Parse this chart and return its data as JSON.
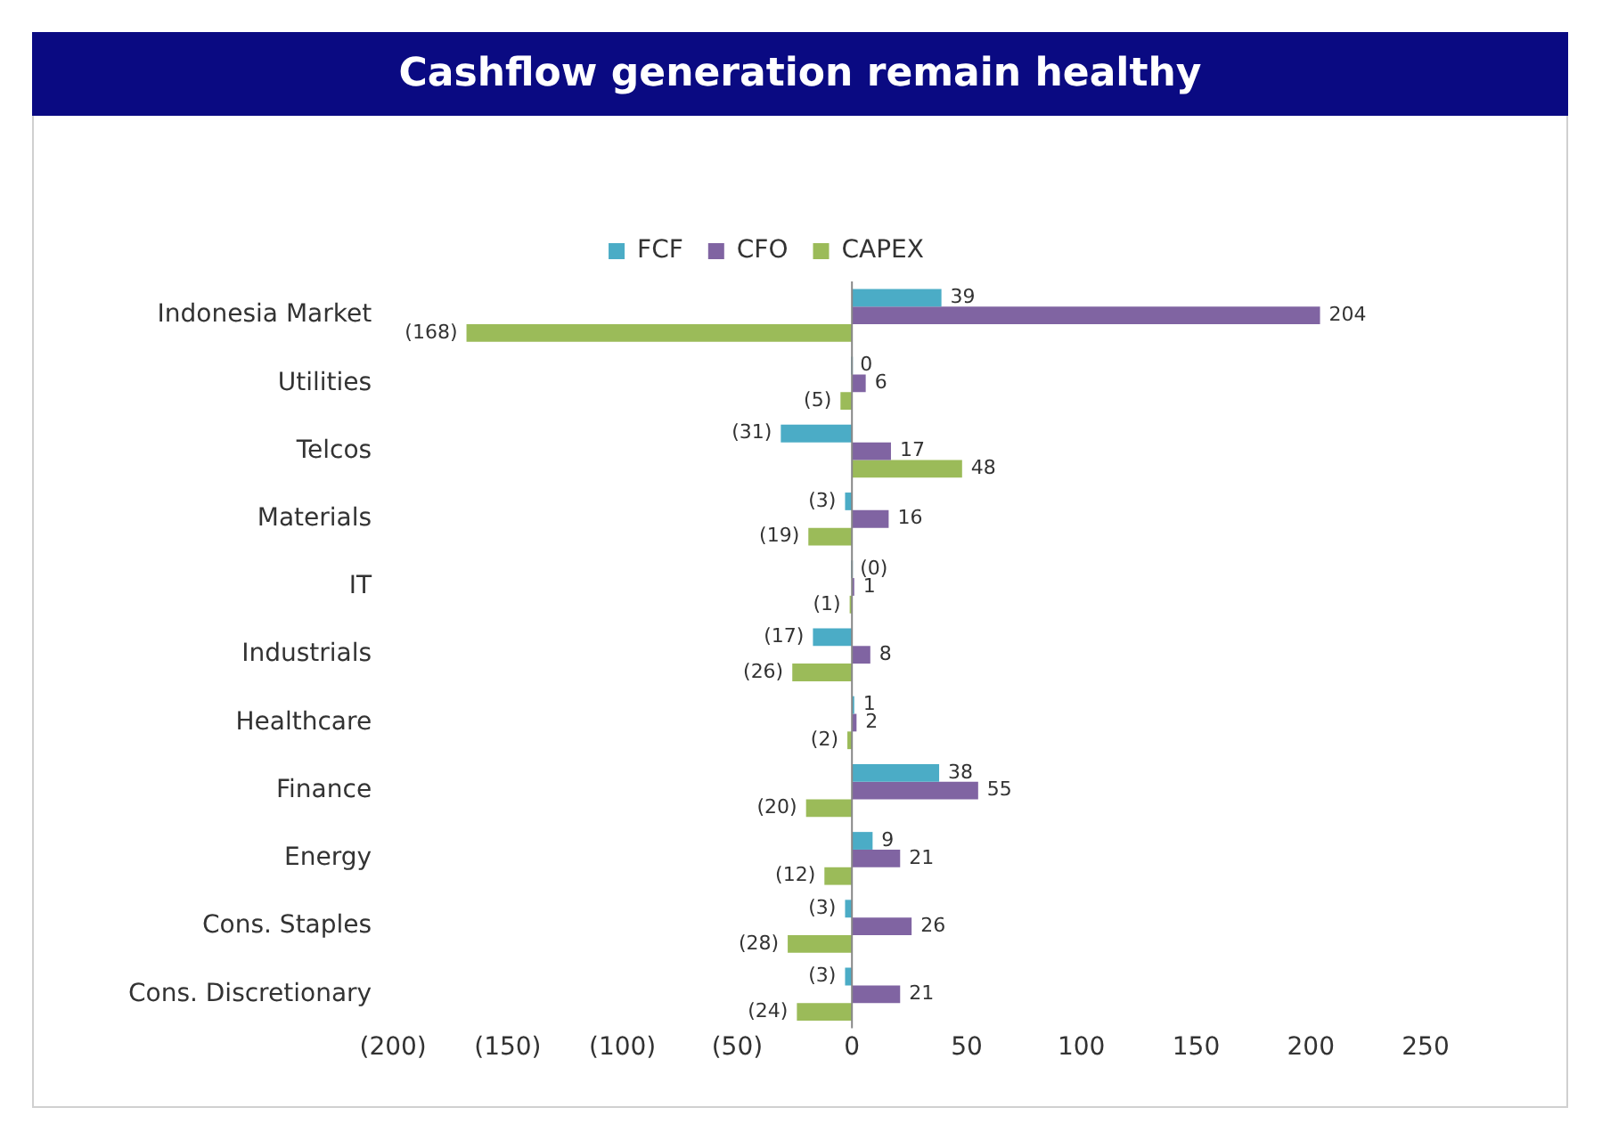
{
  "chart_data": {
    "type": "bar",
    "orientation": "horizontal",
    "title": "Cashflow generation remain healthy",
    "legend": "top",
    "categories": [
      "Indonesia Market",
      "Utilities",
      "Telcos",
      "Materials",
      "IT",
      "Industrials",
      "Healthcare",
      "Finance",
      "Energy",
      "Cons. Staples",
      "Cons. Discretionary"
    ],
    "series": [
      {
        "name": "FCF",
        "color": "#4bacc6",
        "values": [
          39,
          0,
          -31,
          -3,
          0,
          -17,
          1,
          38,
          9,
          -3,
          -3
        ],
        "value_labels": [
          "39",
          "0",
          "(31)",
          "(3)",
          "(0)",
          "(17)",
          "1",
          "38",
          "9",
          "(3)",
          "(3)"
        ]
      },
      {
        "name": "CFO",
        "color": "#8064a2",
        "values": [
          204,
          6,
          17,
          16,
          1,
          8,
          2,
          55,
          21,
          26,
          21
        ],
        "value_labels": [
          "204",
          "6",
          "17",
          "16",
          "1",
          "8",
          "2",
          "55",
          "21",
          "26",
          "21"
        ]
      },
      {
        "name": "CAPEX",
        "color": "#9bbb59",
        "values": [
          -168,
          -5,
          48,
          -19,
          -1,
          -26,
          -2,
          -20,
          -12,
          -28,
          -24
        ],
        "value_labels": [
          "(168)",
          "(5)",
          "48",
          "(19)",
          "(1)",
          "(26)",
          "(2)",
          "(20)",
          "(12)",
          "(28)",
          "(24)"
        ]
      }
    ],
    "xlim": [
      -200,
      250
    ],
    "xticks": [
      {
        "value": -200,
        "label": "(200)"
      },
      {
        "value": -150,
        "label": "(150)"
      },
      {
        "value": -100,
        "label": "(100)"
      },
      {
        "value": -50,
        "label": "(50)"
      },
      0,
      50,
      100,
      150,
      200,
      250
    ],
    "ref_lines": [
      {
        "axis": "x",
        "value": 0,
        "color": "#888888"
      }
    ],
    "grid": false
  }
}
